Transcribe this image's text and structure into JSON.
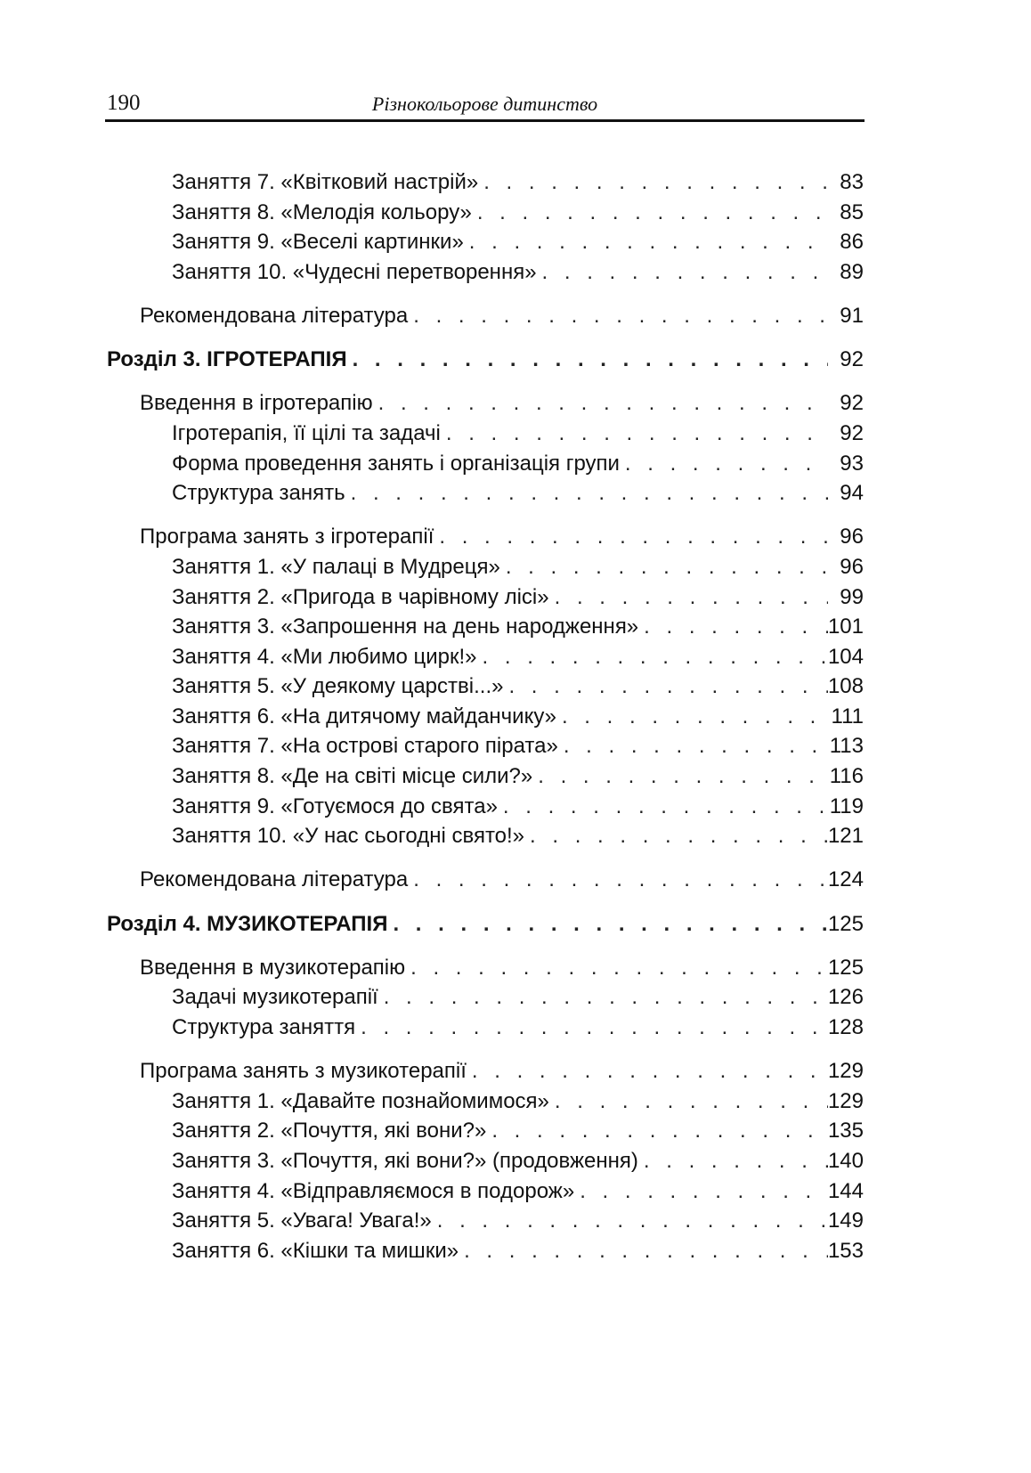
{
  "header": {
    "page_number": "190",
    "running_title": "Різнокольорове дитинство"
  },
  "toc": [
    {
      "level": 2,
      "title": "Заняття 7. «Квітковий настрій»",
      "page": "83"
    },
    {
      "level": 2,
      "title": "Заняття 8.  «Мелодія кольору»",
      "page": "85"
    },
    {
      "level": 2,
      "title": "Заняття 9.  «Веселі картинки»",
      "page": "86"
    },
    {
      "level": 2,
      "title": "Заняття 10. «Чудесні перетворення»",
      "page": "89"
    },
    {
      "level": 1,
      "gap": true,
      "title": "Рекомендована література",
      "page": "91"
    },
    {
      "level": 0,
      "gap": true,
      "title": "Розділ 3. ІГРОТЕРАПІЯ",
      "page": "92"
    },
    {
      "level": 1,
      "gap": true,
      "title": "Введення в ігротерапію",
      "page": "92"
    },
    {
      "level": 2,
      "title": "Ігротерапія, її цілі та задачі",
      "page": "92"
    },
    {
      "level": 2,
      "title": "Форма проведення занять і організація групи",
      "page": "93"
    },
    {
      "level": 2,
      "title": "Структура занять",
      "page": "94"
    },
    {
      "level": 1,
      "gap": true,
      "title": "Програма занять з ігротерапії",
      "page": "96"
    },
    {
      "level": 2,
      "title": "Заняття 1. «У палаці в Мудреця»",
      "page": "96"
    },
    {
      "level": 2,
      "title": "Заняття 2. «Пригода в чарівному лісі»",
      "page": "99"
    },
    {
      "level": 2,
      "title": "Заняття 3. «Запрошення на день народження»",
      "page": "101"
    },
    {
      "level": 2,
      "title": "Заняття 4. «Ми любимо цирк!»",
      "page": "104"
    },
    {
      "level": 2,
      "title": "Заняття 5. «У деякому царстві...»",
      "page": "108"
    },
    {
      "level": 2,
      "title": "Заняття 6. «На дитячому майданчику»",
      "page": "111"
    },
    {
      "level": 2,
      "title": "Заняття 7. «На острові старого пірата»",
      "page": "113"
    },
    {
      "level": 2,
      "title": "Заняття 8. «Де на світі місце сили?»",
      "page": "116"
    },
    {
      "level": 2,
      "title": "Заняття 9. «Готуємося до свята»",
      "page": "119"
    },
    {
      "level": 2,
      "title": "Заняття 10.  «У нас сьогодні свято!»",
      "page": "121"
    },
    {
      "level": 1,
      "gap": true,
      "title": "Рекомендована література",
      "page": "124"
    },
    {
      "level": 0,
      "gap": true,
      "title": "Розділ 4. МУЗИКОТЕРАПІЯ",
      "page": "125"
    },
    {
      "level": 1,
      "gap": true,
      "title": "Введення в музикотерапію",
      "page": "125"
    },
    {
      "level": 2,
      "title": "Задачі музикотерапії",
      "page": "126"
    },
    {
      "level": 2,
      "title": "Структура заняття",
      "page": "128"
    },
    {
      "level": 1,
      "gap": true,
      "title": "Програма занять з музикотерапії",
      "page": "129"
    },
    {
      "level": 2,
      "title": "Заняття 1. «Давайте познайомимося»",
      "page": "129"
    },
    {
      "level": 2,
      "title": "Заняття 2.  «Почуття, які вони?»",
      "page": "135"
    },
    {
      "level": 2,
      "title": "Заняття 3. «Почуття, які вони?» (продовження)",
      "page": "140"
    },
    {
      "level": 2,
      "title": "Заняття 4. «Відправляємося в подорож»",
      "page": "144"
    },
    {
      "level": 2,
      "title": "Заняття 5.  «Увага! Увага!»",
      "page": "149"
    },
    {
      "level": 2,
      "title": "Заняття 6.  «Кішки та мишки»",
      "page": "153"
    }
  ]
}
